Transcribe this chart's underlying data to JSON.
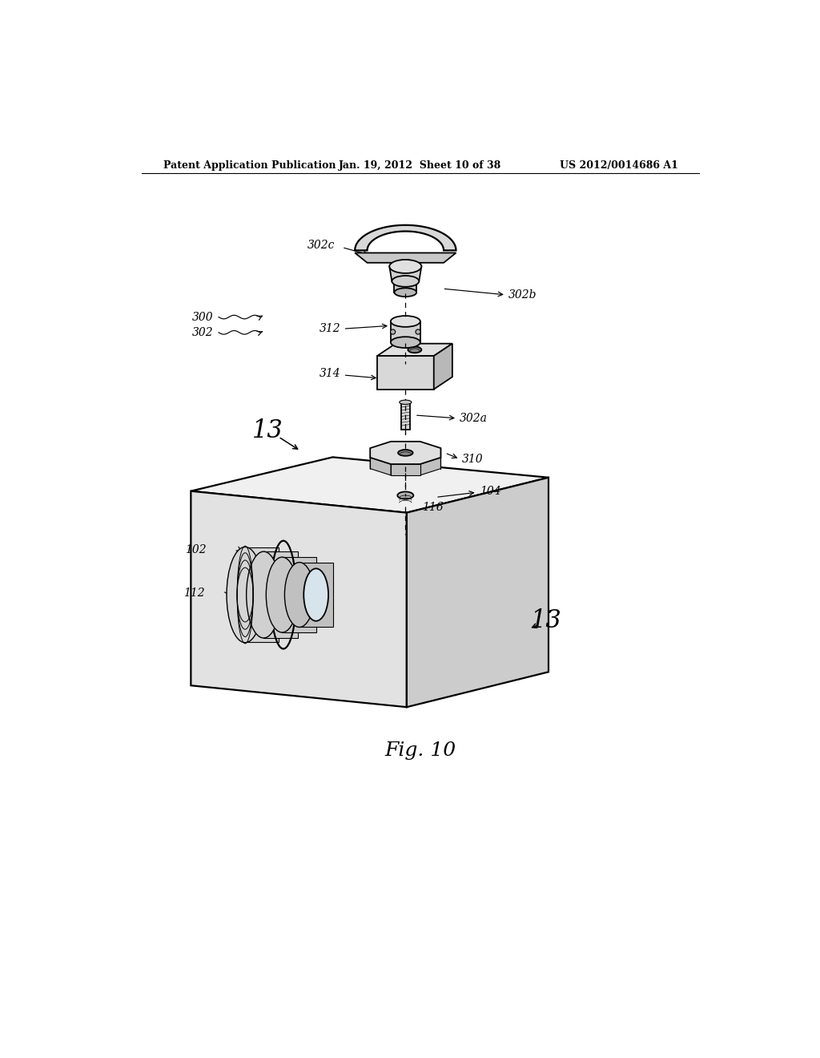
{
  "bg_color": "#ffffff",
  "header_left": "Patent Application Publication",
  "header_center": "Jan. 19, 2012  Sheet 10 of 38",
  "header_right": "US 2012/0014686 A1",
  "figure_label": "Fig. 10",
  "line_color": "#000000",
  "lw": 1.3,
  "lw_thick": 1.6
}
